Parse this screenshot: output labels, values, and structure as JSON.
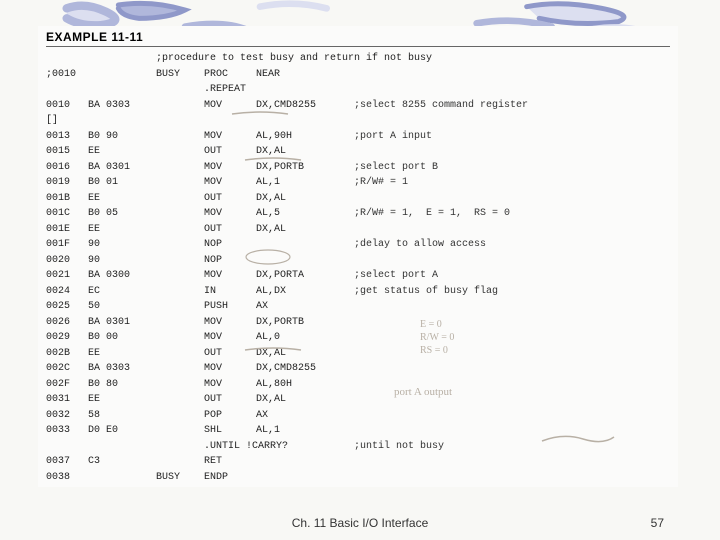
{
  "header": {
    "example_label": "EXAMPLE 11-11"
  },
  "colors": {
    "deco_light": "#dcdff0",
    "deco_med": "#b0b7db",
    "deco_dark": "#8f98c9",
    "pencil": "#b8b0a5",
    "text": "#222222",
    "bg": "#f8f8f5"
  },
  "code": [
    {
      "addr": "",
      "bytes": "",
      "lbl": "",
      "op": ";procedure to test busy and return if not busy",
      "args": "",
      "cmt": ""
    },
    {
      "addr": ";0010",
      "bytes": "",
      "lbl": "BUSY",
      "op": "PROC",
      "args": "NEAR",
      "cmt": ""
    },
    {
      "addr": "",
      "bytes": "",
      "lbl": "",
      "op": ".REPEAT",
      "args": "",
      "cmt": ""
    },
    {
      "addr": "0010",
      "bytes": "BA 0303",
      "lbl": "",
      "op": "MOV",
      "args": "DX,CMD8255",
      "cmt": ";select 8255 command register"
    },
    {
      "addr": "[]",
      "bytes": "",
      "lbl": "",
      "op": "",
      "args": "",
      "cmt": ""
    },
    {
      "addr": "0013",
      "bytes": "B0 90",
      "lbl": "",
      "op": "MOV",
      "args": "AL,90H",
      "cmt": ";port A input"
    },
    {
      "addr": "0015",
      "bytes": "EE",
      "lbl": "",
      "op": "OUT",
      "args": "DX,AL",
      "cmt": ""
    },
    {
      "addr": "0016",
      "bytes": "BA 0301",
      "lbl": "",
      "op": "MOV",
      "args": "DX,PORTB",
      "cmt": ";select port B"
    },
    {
      "addr": "0019",
      "bytes": "B0 01",
      "lbl": "",
      "op": "MOV",
      "args": "AL,1",
      "cmt": ";R/W# = 1"
    },
    {
      "addr": "001B",
      "bytes": "EE",
      "lbl": "",
      "op": "OUT",
      "args": "DX,AL",
      "cmt": ""
    },
    {
      "addr": "001C",
      "bytes": "B0 05",
      "lbl": "",
      "op": "MOV",
      "args": "AL,5",
      "cmt": ";R/W# = 1,  E = 1,  RS = 0"
    },
    {
      "addr": "001E",
      "bytes": "EE",
      "lbl": "",
      "op": "OUT",
      "args": "DX,AL",
      "cmt": ""
    },
    {
      "addr": "001F",
      "bytes": "90",
      "lbl": "",
      "op": "NOP",
      "args": "",
      "cmt": ";delay to allow access"
    },
    {
      "addr": "0020",
      "bytes": "90",
      "lbl": "",
      "op": "NOP",
      "args": "",
      "cmt": ""
    },
    {
      "addr": "0021",
      "bytes": "BA 0300",
      "lbl": "",
      "op": "MOV",
      "args": "DX,PORTA",
      "cmt": ";select port A"
    },
    {
      "addr": "0024",
      "bytes": "EC",
      "lbl": "",
      "op": "IN",
      "args": "AL,DX",
      "cmt": ";get status of busy flag"
    },
    {
      "addr": "0025",
      "bytes": "50",
      "lbl": "",
      "op": "PUSH",
      "args": "AX",
      "cmt": ""
    },
    {
      "addr": "0026",
      "bytes": "BA 0301",
      "lbl": "",
      "op": "MOV",
      "args": "DX,PORTB",
      "cmt": ""
    },
    {
      "addr": "0029",
      "bytes": "B0 00",
      "lbl": "",
      "op": "MOV",
      "args": "AL,0",
      "cmt": ""
    },
    {
      "addr": "002B",
      "bytes": "EE",
      "lbl": "",
      "op": "OUT",
      "args": "DX,AL",
      "cmt": ""
    },
    {
      "addr": "002C",
      "bytes": "BA 0303",
      "lbl": "",
      "op": "MOV",
      "args": "DX,CMD8255",
      "cmt": ""
    },
    {
      "addr": "002F",
      "bytes": "B0 80",
      "lbl": "",
      "op": "MOV",
      "args": "AL,80H",
      "cmt": ""
    },
    {
      "addr": "0031",
      "bytes": "EE",
      "lbl": "",
      "op": "OUT",
      "args": "DX,AL",
      "cmt": ""
    },
    {
      "addr": "0032",
      "bytes": "58",
      "lbl": "",
      "op": "POP",
      "args": "AX",
      "cmt": ""
    },
    {
      "addr": "0033",
      "bytes": "D0 E0",
      "lbl": "",
      "op": "SHL",
      "args": "AL,1",
      "cmt": ""
    },
    {
      "addr": "",
      "bytes": "",
      "lbl": "",
      "op": ".UNTIL !CARRY?",
      "args": "",
      "cmt": ";until not busy"
    },
    {
      "addr": "",
      "bytes": "",
      "lbl": "",
      "op": "",
      "args": "",
      "cmt": ""
    },
    {
      "addr": "0037",
      "bytes": "C3",
      "lbl": "",
      "op": "RET",
      "args": "",
      "cmt": ""
    },
    {
      "addr": "0038",
      "bytes": "",
      "lbl": "BUSY",
      "op": "ENDP",
      "args": "",
      "cmt": ""
    }
  ],
  "handwriting": {
    "line1": "E = 0",
    "line2": "R/W = 0",
    "line3": "RS = 0",
    "line4": "port A output"
  },
  "footer": {
    "text": "Ch. 11 Basic I/O Interface",
    "page": "57"
  }
}
